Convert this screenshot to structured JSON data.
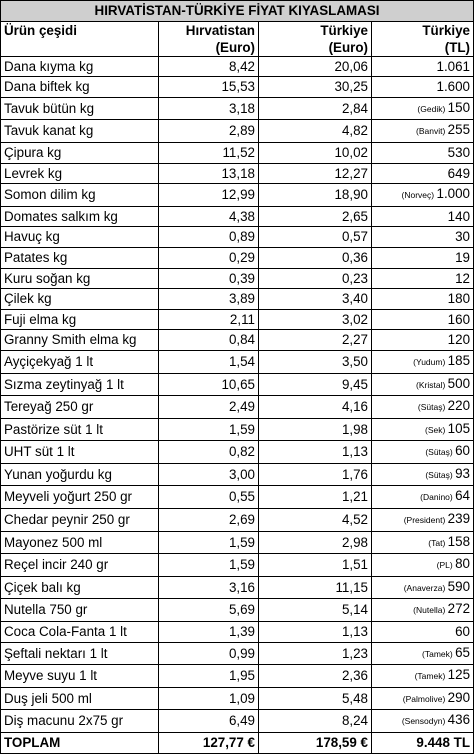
{
  "title": "HIRVATİSTAN-TÜRKİYE FİYAT KIYASLAMASI",
  "headers": {
    "product": "Ürün çeşidi",
    "croatia_line1": "Hırvatistan",
    "croatia_line2": "(Euro)",
    "turkey_eur_line1": "Türkiye",
    "turkey_eur_line2": "(Euro)",
    "turkey_tl_line1": "Türkiye",
    "turkey_tl_line2": "(TL)"
  },
  "rows": [
    {
      "name": "Dana kıyma kg",
      "hr": "8,42",
      "tr_eur": "20,06",
      "brand": "",
      "tl": "1.061"
    },
    {
      "name": "Dana biftek kg",
      "hr": "15,53",
      "tr_eur": "30,25",
      "brand": "",
      "tl": "1.600"
    },
    {
      "name": "Tavuk bütün kg",
      "hr": "3,18",
      "tr_eur": "2,84",
      "brand": "Gedik",
      "tl": "150"
    },
    {
      "name": "Tavuk kanat kg",
      "hr": "2,89",
      "tr_eur": "4,82",
      "brand": "Banvit",
      "tl": "255"
    },
    {
      "name": "Çipura kg",
      "hr": "11,52",
      "tr_eur": "10,02",
      "brand": "",
      "tl": "530"
    },
    {
      "name": "Levrek kg",
      "hr": "13,18",
      "tr_eur": "12,27",
      "brand": "",
      "tl": "649"
    },
    {
      "name": "Somon dilim kg",
      "hr": "12,99",
      "tr_eur": "18,90",
      "brand": "Norveç",
      "tl": "1.000"
    },
    {
      "name": "Domates salkım kg",
      "hr": "4,38",
      "tr_eur": "2,65",
      "brand": "",
      "tl": "140"
    },
    {
      "name": "Havuç kg",
      "hr": "0,89",
      "tr_eur": "0,57",
      "brand": "",
      "tl": "30"
    },
    {
      "name": "Patates kg",
      "hr": "0,29",
      "tr_eur": "0,36",
      "brand": "",
      "tl": "19"
    },
    {
      "name": "Kuru soğan kg",
      "hr": "0,39",
      "tr_eur": "0,23",
      "brand": "",
      "tl": "12"
    },
    {
      "name": "Çilek kg",
      "hr": "3,89",
      "tr_eur": "3,40",
      "brand": "",
      "tl": "180"
    },
    {
      "name": "Fuji elma kg",
      "hr": "2,11",
      "tr_eur": "3,02",
      "brand": "",
      "tl": "160"
    },
    {
      "name": "Granny Smith elma kg",
      "hr": "0,84",
      "tr_eur": "2,27",
      "brand": "",
      "tl": "120"
    },
    {
      "name": "Ayçiçekyağ 1 lt",
      "hr": "1,54",
      "tr_eur": "3,50",
      "brand": "Yudum",
      "tl": "185"
    },
    {
      "name": "Sızma zeytinyağ 1 lt",
      "hr": "10,65",
      "tr_eur": "9,45",
      "brand": "Kristal",
      "tl": "500"
    },
    {
      "name": "Tereyağ 250 gr",
      "hr": "2,49",
      "tr_eur": "4,16",
      "brand": "Sütaş",
      "tl": "220"
    },
    {
      "name": "Pastörize süt 1 lt",
      "hr": "1,59",
      "tr_eur": "1,98",
      "brand": "Sek",
      "tl": "105"
    },
    {
      "name": "UHT süt 1 lt",
      "hr": "0,82",
      "tr_eur": "1,13",
      "brand": "Sütaş",
      "tl": "60"
    },
    {
      "name": "Yunan yoğurdu kg",
      "hr": "3,00",
      "tr_eur": "1,76",
      "brand": "Sütaş",
      "tl": "93"
    },
    {
      "name": "Meyveli yoğurt 250 gr",
      "hr": "0,55",
      "tr_eur": "1,21",
      "brand": "Danino",
      "tl": "64"
    },
    {
      "name": "Chedar peynir 250 gr",
      "hr": "2,69",
      "tr_eur": "4,52",
      "brand": "President",
      "tl": "239"
    },
    {
      "name": "Mayonez 500 ml",
      "hr": "1,59",
      "tr_eur": "2,98",
      "brand": "Tat",
      "tl": "158"
    },
    {
      "name": "Reçel incir 240 gr",
      "hr": "1,59",
      "tr_eur": "1,51",
      "brand": "PL",
      "tl": "80"
    },
    {
      "name": "Çiçek balı kg",
      "hr": "3,16",
      "tr_eur": "11,15",
      "brand": "Anaverza",
      "tl": "590"
    },
    {
      "name": "Nutella 750 gr",
      "hr": "5,69",
      "tr_eur": "5,14",
      "brand": "Nutella",
      "tl": "272"
    },
    {
      "name": "Coca Cola-Fanta 1 lt",
      "hr": "1,39",
      "tr_eur": "1,13",
      "brand": "",
      "tl": "60"
    },
    {
      "name": "Şeftali nektarı 1 lt",
      "hr": "0,99",
      "tr_eur": "1,23",
      "brand": "Tamek",
      "tl": "65"
    },
    {
      "name": "Meyve suyu 1 lt",
      "hr": "1,95",
      "tr_eur": "2,36",
      "brand": "Tamek",
      "tl": "125"
    },
    {
      "name": "Duş jeli 500 ml",
      "hr": "1,09",
      "tr_eur": "5,48",
      "brand": "Palmolive",
      "tl": "290"
    },
    {
      "name": "Diş macunu 2x75 gr",
      "hr": "6,49",
      "tr_eur": "8,24",
      "brand": "Sensodyn",
      "tl": "436"
    }
  ],
  "total": {
    "label": "TOPLAM",
    "hr": "127,77 €",
    "tr_eur": "178,59 €",
    "tl": "9.448 TL"
  }
}
